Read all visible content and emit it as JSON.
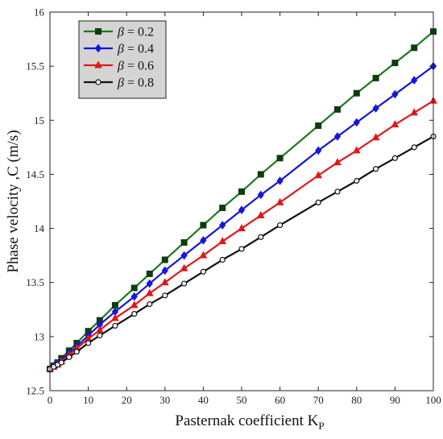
{
  "chart_data": {
    "type": "line",
    "xlabel": "Pasternak coefficient K",
    "xlabel_subscript": "P",
    "ylabel": "Phase velocity ,C (m/s)",
    "xlim": [
      0,
      100
    ],
    "ylim": [
      12.5,
      16
    ],
    "x_ticks": [
      0,
      10,
      20,
      30,
      40,
      50,
      60,
      70,
      80,
      90,
      100
    ],
    "y_ticks": [
      "12.5",
      "13",
      "13.5",
      "14",
      "14.5",
      "15",
      "15.5",
      "16"
    ],
    "grid": false,
    "legend_position": "top-left",
    "series": [
      {
        "name": "β = 0.2",
        "beta_symbol": "β",
        "beta_value": "= 0.2",
        "color": "#1a7a1a",
        "marker": "square",
        "x": [
          0,
          1,
          2,
          3,
          5,
          7,
          10,
          13,
          17,
          22,
          26,
          30,
          35,
          40,
          45,
          50,
          55,
          60,
          70,
          75,
          80,
          85,
          90,
          95,
          100
        ],
        "y": [
          12.7,
          12.73,
          12.76,
          12.8,
          12.87,
          12.94,
          13.05,
          13.15,
          13.29,
          13.45,
          13.58,
          13.71,
          13.87,
          14.03,
          14.19,
          14.34,
          14.5,
          14.65,
          14.95,
          15.1,
          15.25,
          15.39,
          15.53,
          15.67,
          15.82
        ]
      },
      {
        "name": "β = 0.4",
        "beta_symbol": "β",
        "beta_value": "= 0.4",
        "color": "#1515dd",
        "marker": "diamond",
        "x": [
          0,
          1,
          2,
          3,
          5,
          7,
          10,
          13,
          17,
          22,
          26,
          30,
          35,
          40,
          45,
          50,
          55,
          60,
          70,
          75,
          80,
          85,
          90,
          95,
          100
        ],
        "y": [
          12.7,
          12.73,
          12.75,
          12.78,
          12.85,
          12.91,
          13.01,
          13.11,
          13.23,
          13.37,
          13.49,
          13.61,
          13.75,
          13.89,
          14.03,
          14.17,
          14.31,
          14.44,
          14.72,
          14.85,
          14.98,
          15.11,
          15.24,
          15.37,
          15.5
        ]
      },
      {
        "name": "β = 0.6",
        "beta_symbol": "β",
        "beta_value": "= 0.6",
        "color": "#e01818",
        "marker": "triangle",
        "x": [
          0,
          1,
          2,
          3,
          5,
          7,
          10,
          13,
          17,
          22,
          26,
          30,
          35,
          40,
          45,
          50,
          55,
          60,
          70,
          75,
          80,
          85,
          90,
          95,
          100
        ],
        "y": [
          12.7,
          12.72,
          12.74,
          12.77,
          12.83,
          12.89,
          12.98,
          13.06,
          13.17,
          13.29,
          13.4,
          13.5,
          13.63,
          13.75,
          13.88,
          14.0,
          14.12,
          14.24,
          14.49,
          14.61,
          14.72,
          14.84,
          14.96,
          15.07,
          15.18
        ]
      },
      {
        "name": "β = 0.8",
        "beta_symbol": "β",
        "beta_value": "= 0.8",
        "color": "#111111",
        "marker": "circle",
        "x": [
          0,
          1,
          2,
          3,
          5,
          7,
          10,
          13,
          17,
          22,
          26,
          30,
          35,
          40,
          45,
          50,
          55,
          60,
          70,
          75,
          80,
          85,
          90,
          95,
          100
        ],
        "y": [
          12.7,
          12.72,
          12.74,
          12.76,
          12.81,
          12.86,
          12.94,
          13.01,
          13.1,
          13.21,
          13.3,
          13.38,
          13.49,
          13.6,
          13.71,
          13.81,
          13.92,
          14.03,
          14.24,
          14.34,
          14.44,
          14.55,
          14.65,
          14.75,
          14.85
        ]
      }
    ]
  }
}
